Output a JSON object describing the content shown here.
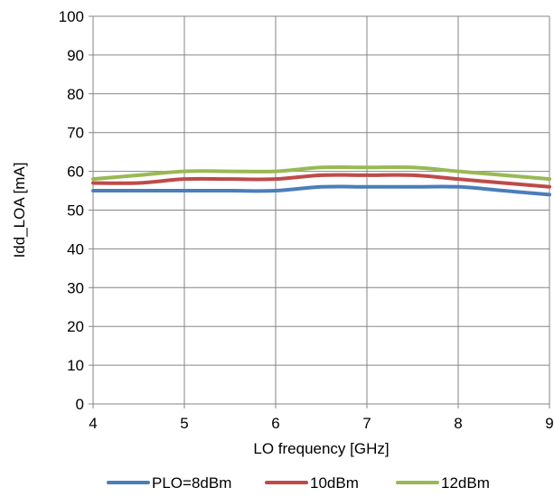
{
  "chart_data": {
    "type": "line",
    "x": [
      4,
      4.5,
      5,
      5.5,
      6,
      6.5,
      7,
      7.5,
      8,
      8.5,
      9
    ],
    "series": [
      {
        "name": "PLO=8dBm",
        "color": "#4a7ebb",
        "values": [
          55,
          55,
          55,
          55,
          55,
          56,
          56,
          56,
          56,
          55,
          54
        ]
      },
      {
        "name": "10dBm",
        "color": "#be4b48",
        "values": [
          57,
          57,
          58,
          58,
          58,
          59,
          59,
          59,
          58,
          57,
          56
        ]
      },
      {
        "name": "12dBm",
        "color": "#98b954",
        "values": [
          58,
          59,
          60,
          60,
          60,
          61,
          61,
          61,
          60,
          59,
          58
        ]
      }
    ],
    "xlabel": "LO frequency [GHz]",
    "ylabel": "Idd_LOA [mA]",
    "xlim": [
      4,
      9
    ],
    "ylim": [
      0,
      100
    ],
    "xticks": [
      4,
      5,
      6,
      7,
      8,
      9
    ],
    "yticks": [
      0,
      10,
      20,
      30,
      40,
      50,
      60,
      70,
      80,
      90,
      100
    ],
    "grid": true,
    "legend_position": "bottom"
  }
}
